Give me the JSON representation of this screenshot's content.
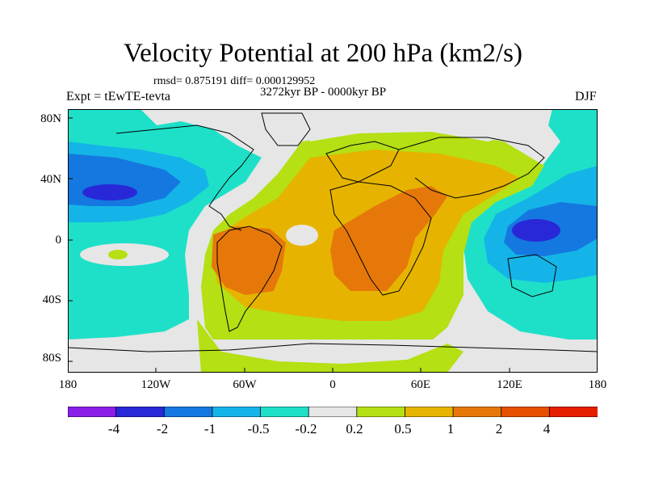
{
  "title": "Velocity Potential at 200 hPa (km2/s)",
  "stats": "rmsd= 0.875191 diff= 0.000129952",
  "experiment": "Expt = tEwTE-tevta",
  "period": "3272kyr BP - 0000kyr BP",
  "season": "DJF",
  "axes": {
    "x_ticks": [
      "180",
      "120W",
      "60W",
      "0",
      "60E",
      "120E",
      "180"
    ],
    "y_ticks": [
      "80N",
      "40N",
      "0",
      "40S",
      "80S"
    ]
  },
  "colorbar": {
    "labels": [
      "-4",
      "-2",
      "-1",
      "-0.5",
      "-0.2",
      "0.2",
      "0.5",
      "1",
      "2",
      "4"
    ],
    "colors": [
      "#8a1ee8",
      "#2828d8",
      "#1478e0",
      "#14b4e8",
      "#1ee0c8",
      "#e6e6e6",
      "#b4e014",
      "#e6b400",
      "#e6780a",
      "#e65000",
      "#e61e00"
    ]
  }
}
